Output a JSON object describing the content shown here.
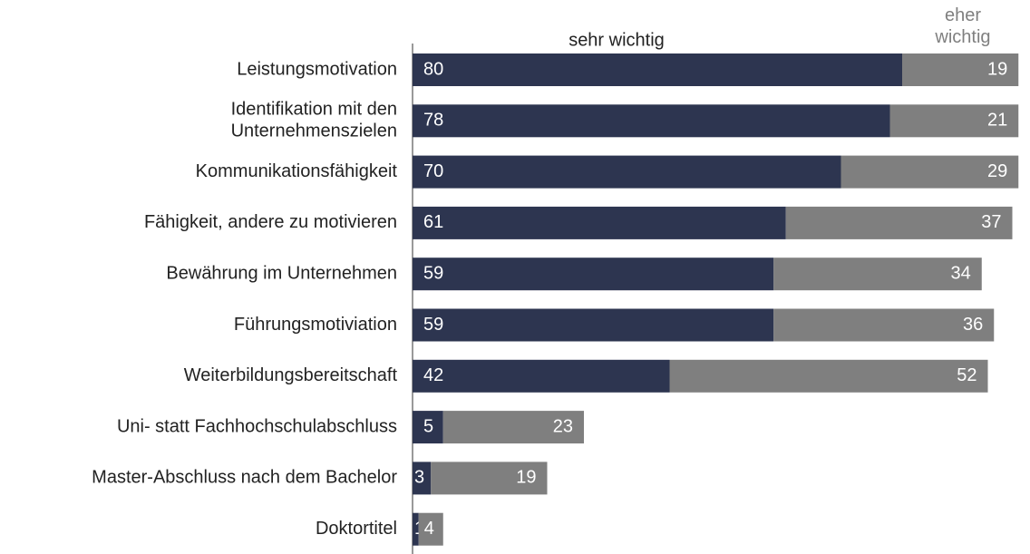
{
  "chart_data": {
    "type": "stacked_bar_horizontal",
    "categories": [
      "Leistungsmotivation",
      "Identifikation mit den\nUnternehmenszielen",
      "Kommunikationsfähigkeit",
      "Fähigkeit, andere zu motivieren",
      "Bewährung im Unternehmen",
      "Führungsmotiviation",
      "Weiterbildungsbereitschaft",
      "Uni- statt Fachhochschulabschluss",
      "Master-Abschluss nach dem Bachelor",
      "Doktortitel"
    ],
    "series": [
      {
        "name": "sehr wichtig",
        "color": "#2d3550",
        "values": [
          80,
          78,
          70,
          61,
          59,
          59,
          42,
          5,
          3,
          1
        ]
      },
      {
        "name": "eher\nwichtig",
        "color": "#7f7f7f",
        "values": [
          19,
          21,
          29,
          37,
          34,
          36,
          52,
          23,
          19,
          4
        ]
      }
    ]
  }
}
